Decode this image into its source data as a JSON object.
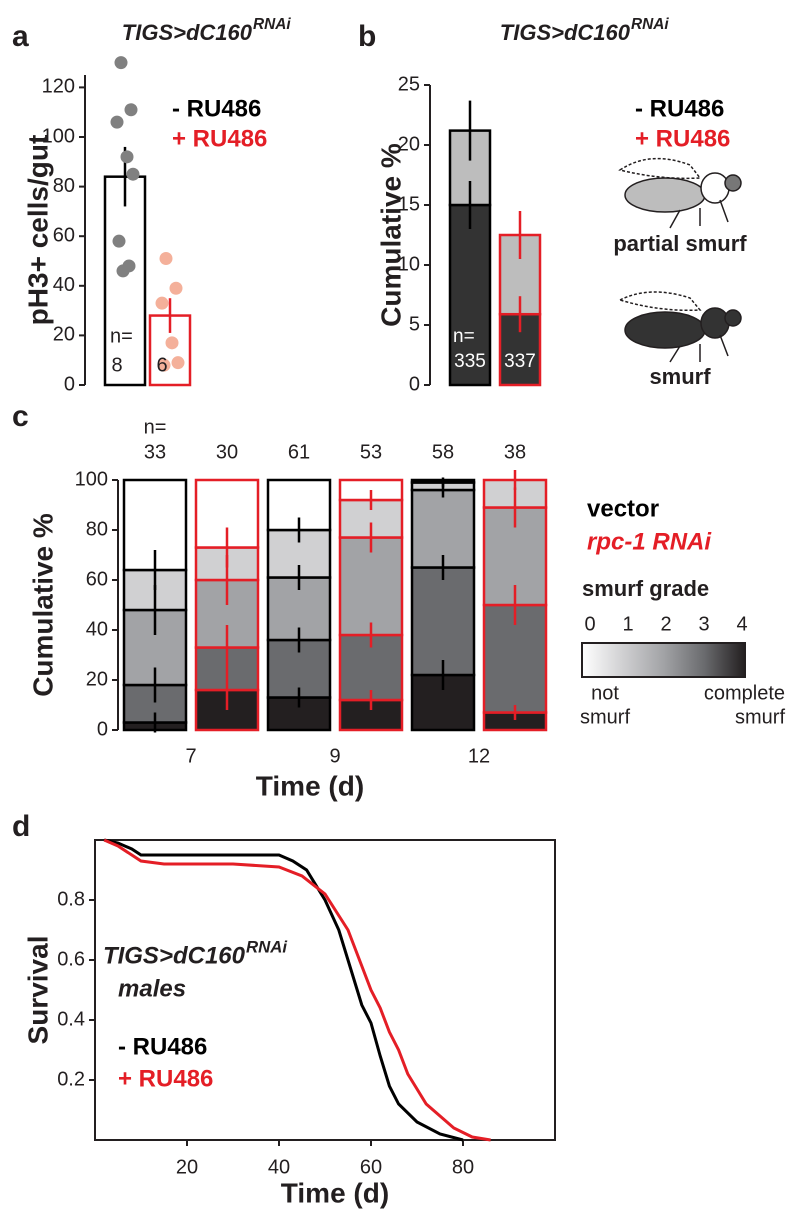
{
  "chart_data": [
    {
      "type": "bar_points",
      "panel": "a",
      "title": "TIGS>dC160",
      "title_sup": "RNAi",
      "ylabel": "pH3+ cells/gut",
      "categories": [
        "- RU486",
        "+ RU486"
      ],
      "colors": [
        "#000000",
        "#e41e26"
      ],
      "values": [
        84,
        28
      ],
      "errors": [
        12,
        7
      ],
      "points": [
        [
          130,
          111,
          106,
          92,
          85,
          58,
          48,
          46
        ],
        [
          51,
          39,
          33,
          17,
          9,
          8
        ]
      ],
      "point_colors": [
        "#808080",
        "#f4b09a"
      ],
      "n_label": "n=",
      "n": [
        8,
        6
      ],
      "ylim": [
        0,
        125
      ],
      "yticks": [
        0,
        20,
        40,
        60,
        80,
        100,
        120
      ]
    },
    {
      "type": "stacked_bar",
      "panel": "b",
      "title": "TIGS>dC160",
      "title_sup": "RNAi",
      "ylabel": "Cumulative %",
      "categories": [
        "- RU486",
        "+ RU486"
      ],
      "colors": [
        "#000000",
        "#e41e26"
      ],
      "series": [
        {
          "name": "smurf",
          "color": "#333333",
          "values": [
            15,
            5.9
          ],
          "errors": [
            2,
            1.5
          ]
        },
        {
          "name": "partial smurf",
          "color": "#bdbdbd",
          "values": [
            6.2,
            6.6
          ],
          "errors": [
            2.5,
            2
          ]
        }
      ],
      "n_label": "n=",
      "n": [
        335,
        337
      ],
      "ylim": [
        0,
        25
      ],
      "yticks": [
        0,
        5,
        10,
        15,
        20,
        25
      ]
    },
    {
      "type": "grouped_stacked_bar",
      "panel": "c",
      "ylabel": "Cumulative %",
      "xlabel": "Time (d)",
      "groups": [
        "7",
        "9",
        "12"
      ],
      "conditions": [
        {
          "name": "vector",
          "color": "#000000"
        },
        {
          "name": "rpc-1 RNAi",
          "color": "#e41e26"
        }
      ],
      "n_label": "n=",
      "n": [
        33,
        30,
        61,
        53,
        58,
        38
      ],
      "legend_title": "smurf grade",
      "grade_min_label": [
        "not",
        "smurf"
      ],
      "grade_max_label": [
        "complete",
        "smurf"
      ],
      "series": [
        {
          "name": "0",
          "color": "#ffffff",
          "values": [
            36,
            27,
            20,
            8,
            1,
            0
          ],
          "errors": [
            null,
            null,
            null,
            null,
            null,
            null
          ]
        },
        {
          "name": "1",
          "color": "#d0d0d2",
          "values": [
            16,
            13,
            19,
            15,
            3,
            11
          ],
          "errors": [
            8,
            8,
            5,
            4,
            2,
            4
          ]
        },
        {
          "name": "2",
          "color": "#a2a3a6",
          "values": [
            30,
            27,
            25,
            39,
            31,
            39
          ],
          "errors": [
            10,
            10,
            5,
            6,
            3,
            8
          ]
        },
        {
          "name": "3",
          "color": "#6a6b6e",
          "values": [
            15,
            17,
            23,
            26,
            43,
            43
          ],
          "errors": [
            7,
            9,
            5,
            5,
            5,
            8
          ]
        },
        {
          "name": "4",
          "color": "#231f20",
          "values": [
            3,
            16,
            13,
            12,
            22,
            7
          ],
          "errors": [
            4,
            8,
            4,
            4,
            6,
            3
          ]
        }
      ],
      "ylim": [
        0,
        100
      ],
      "yticks": [
        0,
        20,
        40,
        60,
        80,
        100
      ]
    },
    {
      "type": "line",
      "panel": "d",
      "title": "TIGS>dC160",
      "title_sup": "RNAi",
      "subtitle": "males",
      "xlabel": "Time (d)",
      "ylabel": "Survival",
      "series": [
        {
          "name": "- RU486",
          "color": "#000000",
          "x": [
            2,
            5,
            8,
            10,
            15,
            20,
            30,
            40,
            43,
            46,
            50,
            53,
            56,
            58,
            60,
            62,
            64,
            66,
            70,
            75,
            80
          ],
          "values": [
            1,
            0.99,
            0.97,
            0.95,
            0.95,
            0.95,
            0.95,
            0.95,
            0.93,
            0.9,
            0.8,
            0.7,
            0.55,
            0.45,
            0.39,
            0.28,
            0.18,
            0.12,
            0.06,
            0.02,
            0
          ]
        },
        {
          "name": "+ RU486",
          "color": "#e41e26",
          "x": [
            2,
            5,
            8,
            10,
            15,
            30,
            40,
            45,
            50,
            55,
            58,
            60,
            62,
            64,
            66,
            68,
            70,
            72,
            75,
            78,
            82,
            86
          ],
          "values": [
            1,
            0.98,
            0.95,
            0.93,
            0.92,
            0.92,
            0.91,
            0.88,
            0.82,
            0.7,
            0.58,
            0.5,
            0.44,
            0.36,
            0.3,
            0.22,
            0.17,
            0.12,
            0.08,
            0.04,
            0.01,
            0
          ]
        }
      ],
      "xlim": [
        0,
        100
      ],
      "xticks": [
        20,
        40,
        60,
        80
      ],
      "ylim": [
        0,
        1
      ],
      "yticks": [
        0.2,
        0.4,
        0.6,
        0.8
      ]
    }
  ]
}
